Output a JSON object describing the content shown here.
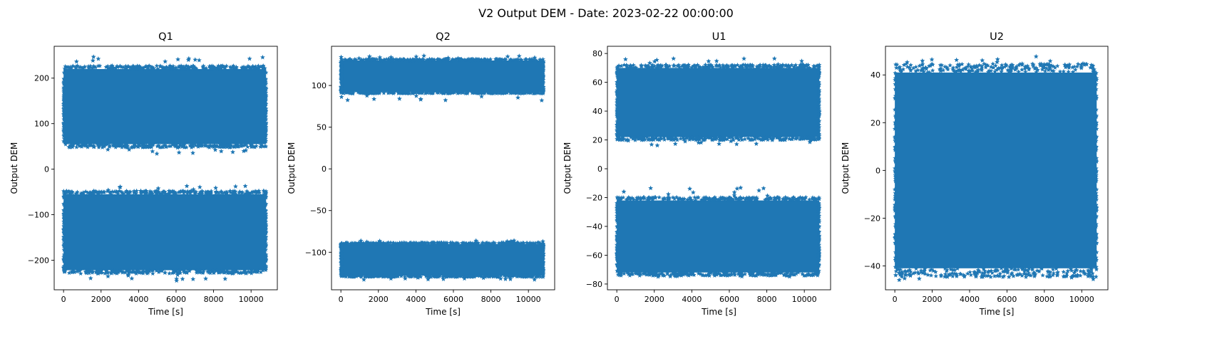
{
  "chart_data": {
    "type": "scatter",
    "suptitle": "V2 Output DEM - Date: 2023-02-22 00:00:00",
    "marker": "star",
    "color": "#1f77b4",
    "grid": false,
    "panels": [
      {
        "title": "Q1",
        "xlabel": "Time [s]",
        "ylabel": "Output DEM",
        "xlim": [
          -500,
          11400
        ],
        "ylim": [
          -265,
          270
        ],
        "xticks": [
          0,
          2000,
          4000,
          6000,
          8000,
          10000
        ],
        "yticks": [
          -200,
          -100,
          0,
          100,
          200
        ],
        "x_range": [
          0,
          10800
        ],
        "bands": [
          {
            "low": 55,
            "high": 220,
            "outlier_min": 33,
            "outlier_max": 248
          },
          {
            "low": -222,
            "high": -55,
            "outlier_min": -245,
            "outlier_max": -35
          }
        ]
      },
      {
        "title": "Q2",
        "xlabel": "Time [s]",
        "ylabel": "Output DEM",
        "xlim": [
          -500,
          11400
        ],
        "ylim": [
          -145,
          147
        ],
        "xticks": [
          0,
          2000,
          4000,
          6000,
          8000,
          10000
        ],
        "yticks": [
          -100,
          -50,
          0,
          50,
          100
        ],
        "x_range": [
          0,
          10800
        ],
        "bands": [
          {
            "low": 92,
            "high": 130,
            "outlier_min": 81,
            "outlier_max": 136
          },
          {
            "low": -128,
            "high": -90,
            "outlier_min": -133,
            "outlier_max": -86
          }
        ]
      },
      {
        "title": "U1",
        "xlabel": "Time [s]",
        "ylabel": "Output DEM",
        "xlim": [
          -500,
          11400
        ],
        "ylim": [
          -84,
          85
        ],
        "xticks": [
          0,
          2000,
          4000,
          6000,
          8000,
          10000
        ],
        "yticks": [
          -80,
          -60,
          -40,
          -20,
          0,
          20,
          40,
          60,
          80
        ],
        "x_range": [
          0,
          10800
        ],
        "bands": [
          {
            "low": 22,
            "high": 70,
            "outlier_min": 16,
            "outlier_max": 77
          },
          {
            "low": -72,
            "high": -22,
            "outlier_min": -75,
            "outlier_max": -13
          }
        ]
      },
      {
        "title": "U2",
        "xlabel": "Time [s]",
        "ylabel": "Output DEM",
        "xlim": [
          -500,
          11400
        ],
        "ylim": [
          -50,
          52
        ],
        "xticks": [
          0,
          2000,
          4000,
          6000,
          8000,
          10000
        ],
        "yticks": [
          -40,
          -20,
          0,
          20,
          40
        ],
        "x_range": [
          0,
          10800
        ],
        "bands": [
          {
            "low": -41,
            "high": 41,
            "outlier_min": -46,
            "outlier_max": 48
          }
        ]
      }
    ]
  }
}
